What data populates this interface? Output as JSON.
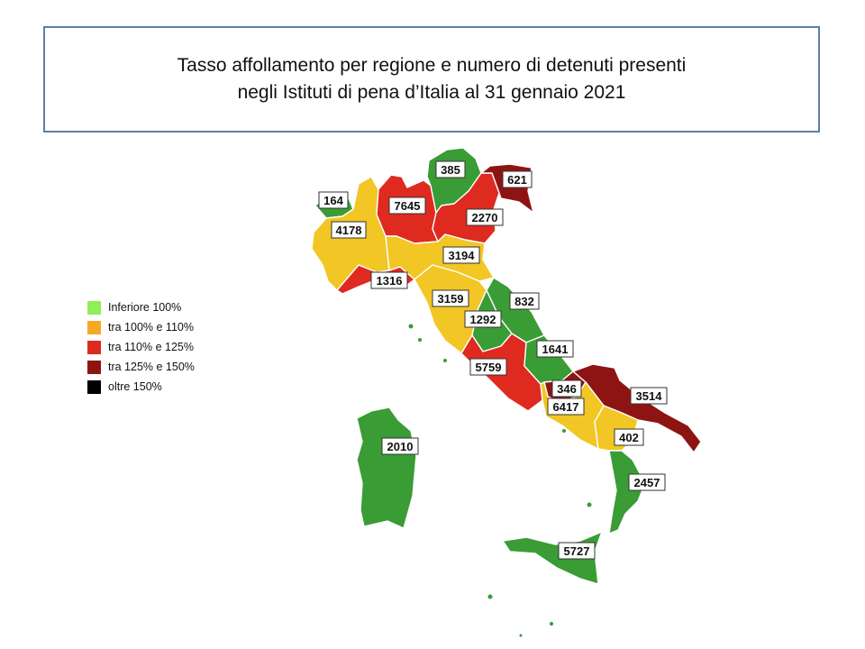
{
  "title": {
    "line1": "Tasso affollamento per regione e numero di detenuti presenti",
    "line2": "negli Istituti di pena d’Italia al 31 gennaio 2021"
  },
  "colors": {
    "below_100": "#3a9c34",
    "100_110": "#f2c624",
    "110_125": "#df2a20",
    "125_150": "#8e1414",
    "over_150": "#000000",
    "legend_below_100": "#90ee56",
    "legend_100_110": "#f7a823"
  },
  "legend": [
    {
      "label": "Inferiore 100%",
      "color": "#90ee56"
    },
    {
      "label": "tra 100% e 110%",
      "color": "#f7a823"
    },
    {
      "label": "tra 110% e 125%",
      "color": "#df2a20"
    },
    {
      "label": "tra 125% e 150%",
      "color": "#8e1414"
    },
    {
      "label": "oltre 150%",
      "color": "#000000"
    }
  ],
  "regions": [
    {
      "name": "valle-d-aosta",
      "detenuti": "164",
      "class": "below_100"
    },
    {
      "name": "piemonte",
      "detenuti": "4178",
      "class": "100_110"
    },
    {
      "name": "lombardia",
      "detenuti": "7645",
      "class": "110_125"
    },
    {
      "name": "trentino-alto-adige",
      "detenuti": "385",
      "class": "below_100"
    },
    {
      "name": "friuli-venezia-giulia",
      "detenuti": "621",
      "class": "125_150"
    },
    {
      "name": "veneto",
      "detenuti": "2270",
      "class": "110_125"
    },
    {
      "name": "liguria",
      "detenuti": "1316",
      "class": "110_125"
    },
    {
      "name": "emilia-romagna",
      "detenuti": "3194",
      "class": "100_110"
    },
    {
      "name": "toscana",
      "detenuti": "3159",
      "class": "100_110"
    },
    {
      "name": "umbria",
      "detenuti": "1292",
      "class": "below_100"
    },
    {
      "name": "marche",
      "detenuti": "832",
      "class": "below_100"
    },
    {
      "name": "lazio",
      "detenuti": "5759",
      "class": "110_125"
    },
    {
      "name": "abruzzo",
      "detenuti": "1641",
      "class": "below_100"
    },
    {
      "name": "molise",
      "detenuti": "346",
      "class": "125_150"
    },
    {
      "name": "campania",
      "detenuti": "6417",
      "class": "100_110"
    },
    {
      "name": "puglia",
      "detenuti": "3514",
      "class": "125_150"
    },
    {
      "name": "basilicata",
      "detenuti": "402",
      "class": "100_110"
    },
    {
      "name": "calabria",
      "detenuti": "2457",
      "class": "below_100"
    },
    {
      "name": "sicilia",
      "detenuti": "5727",
      "class": "below_100"
    },
    {
      "name": "sardegna",
      "detenuti": "2010",
      "class": "below_100"
    }
  ]
}
